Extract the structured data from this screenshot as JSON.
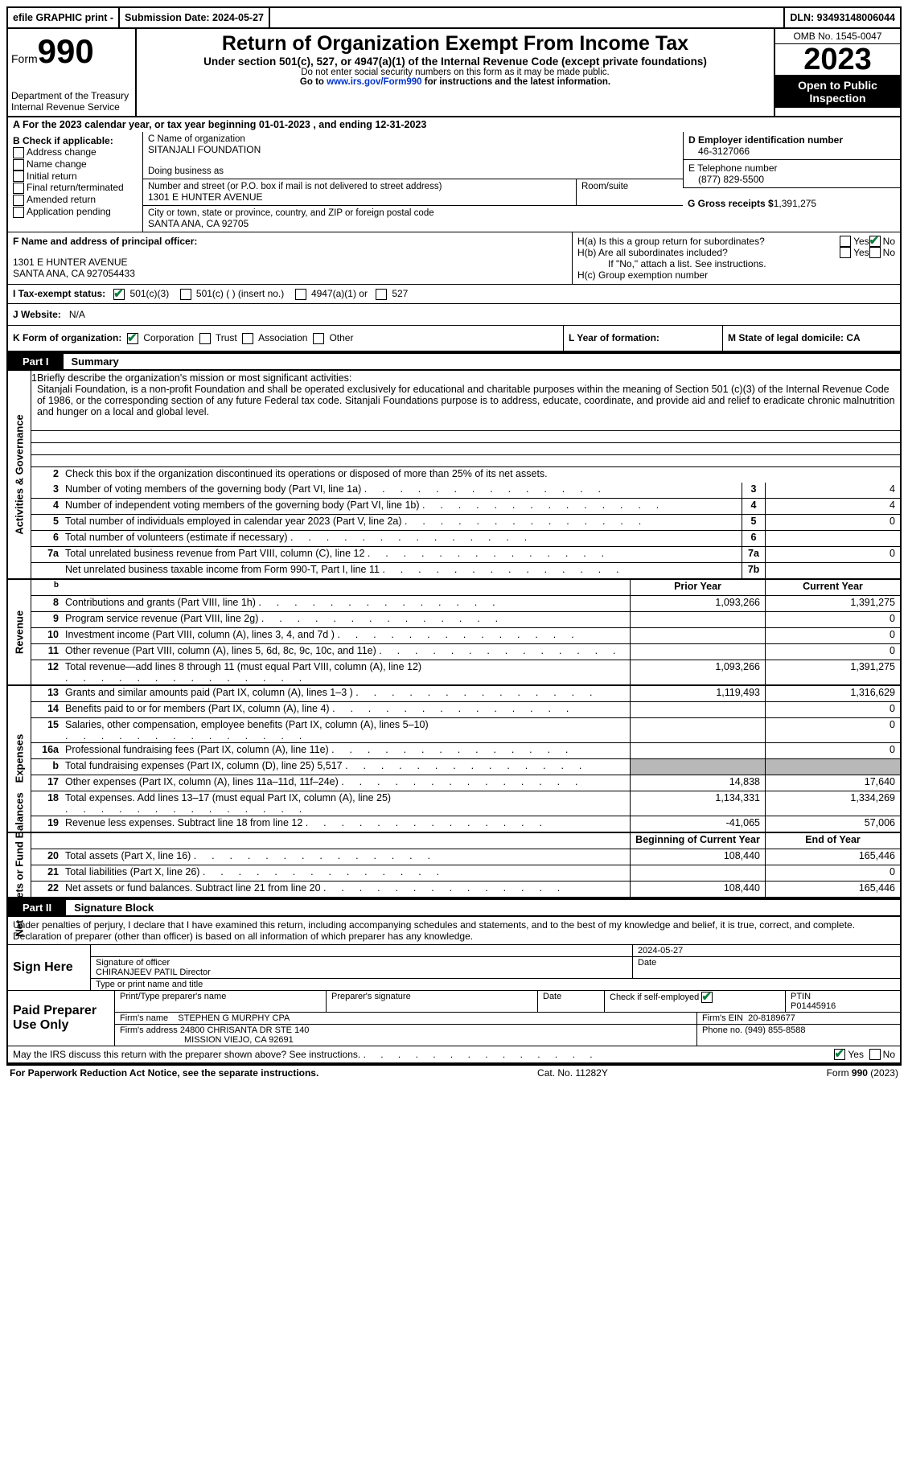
{
  "topbar": {
    "efile": "efile GRAPHIC print -",
    "sub_label": "Submission Date: 2024-05-27",
    "dln": "DLN: 93493148006044"
  },
  "header": {
    "form_word": "Form",
    "form_num": "990",
    "dept": "Department of the Treasury Internal Revenue Service",
    "title": "Return of Organization Exempt From Income Tax",
    "subtitle": "Under section 501(c), 527, or 4947(a)(1) of the Internal Revenue Code (except private foundations)",
    "ssn_note": "Do not enter social security numbers on this form as it may be made public.",
    "goto_pre": "Go to ",
    "goto_link": "www.irs.gov/Form990",
    "goto_post": " for instructions and the latest information.",
    "omb": "OMB No. 1545-0047",
    "year": "2023",
    "inspection": "Open to Public Inspection"
  },
  "rowA": "A  For the 2023 calendar year, or tax year beginning 01-01-2023    , and ending 12-31-2023",
  "colB": {
    "title": "B Check if applicable:",
    "items": [
      "Address change",
      "Name change",
      "Initial return",
      "Final return/terminated",
      "Amended return",
      "Application pending"
    ]
  },
  "colC": {
    "name_label": "C Name of organization",
    "name": "SITANJALI FOUNDATION",
    "dba_label": "Doing business as",
    "street_label": "Number and street (or P.O. box if mail is not delivered to street address)",
    "room_label": "Room/suite",
    "street": "1301 E HUNTER AVENUE",
    "city_label": "City or town, state or province, country, and ZIP or foreign postal code",
    "city": "SANTA ANA, CA  92705"
  },
  "colD": {
    "ein_label": "D Employer identification number",
    "ein": "46-3127066",
    "phone_label": "E Telephone number",
    "phone": "(877) 829-5500",
    "gross_label": "G Gross receipts $",
    "gross": "1,391,275"
  },
  "rowF": {
    "label": "F  Name and address of principal officer:",
    "addr1": "1301 E HUNTER AVENUE",
    "addr2": "SANTA ANA, CA  927054433"
  },
  "rowH": {
    "a": "H(a)  Is this a group return for subordinates?",
    "b": "H(b)  Are all subordinates included?",
    "b_note": "If \"No,\" attach a list. See instructions.",
    "c": "H(c)  Group exemption number"
  },
  "rowI": {
    "label": "I    Tax-exempt status:",
    "opts": [
      "501(c)(3)",
      "501(c) (  ) (insert no.)",
      "4947(a)(1) or",
      "527"
    ]
  },
  "rowJ": {
    "label": "J    Website:",
    "val": "N/A"
  },
  "rowK": {
    "label": "K Form of organization:",
    "opts": [
      "Corporation",
      "Trust",
      "Association",
      "Other"
    ]
  },
  "rowL": "L Year of formation:",
  "rowM": "M State of legal domicile: CA",
  "part1": {
    "tab": "Part I",
    "label": "Summary"
  },
  "governance": {
    "title": "Activities & Governance",
    "line1_label": "Briefly describe the organization's mission or most significant activities:",
    "mission": "Sitanjali Foundation, is a non-profit Foundation and shall be operated exclusively for educational and charitable purposes within the meaning of Section 501 (c)(3) of the Internal Revenue Code of 1986, or the corresponding section of any future Federal tax code. Sitanjali Foundations purpose is to address, educate, coordinate, and provide aid and relief to eradicate chronic malnutrition and hunger on a local and global level.",
    "line2": "Check this box        if the organization discontinued its operations or disposed of more than 25% of its net assets.",
    "lines": [
      {
        "n": "3",
        "desc": "Number of voting members of the governing body (Part VI, line 1a)",
        "box": "3",
        "val": "4"
      },
      {
        "n": "4",
        "desc": "Number of independent voting members of the governing body (Part VI, line 1b)",
        "box": "4",
        "val": "4"
      },
      {
        "n": "5",
        "desc": "Total number of individuals employed in calendar year 2023 (Part V, line 2a)",
        "box": "5",
        "val": "0"
      },
      {
        "n": "6",
        "desc": "Total number of volunteers (estimate if necessary)",
        "box": "6",
        "val": ""
      },
      {
        "n": "7a",
        "desc": "Total unrelated business revenue from Part VIII, column (C), line 12",
        "box": "7a",
        "val": "0"
      },
      {
        "n": "",
        "desc": "Net unrelated business taxable income from Form 990-T, Part I, line 11",
        "box": "7b",
        "val": ""
      }
    ]
  },
  "revenue": {
    "title": "Revenue",
    "head_prior": "Prior Year",
    "head_curr": "Current Year",
    "lines": [
      {
        "n": "8",
        "desc": "Contributions and grants (Part VIII, line 1h)",
        "prior": "1,093,266",
        "curr": "1,391,275"
      },
      {
        "n": "9",
        "desc": "Program service revenue (Part VIII, line 2g)",
        "prior": "",
        "curr": "0"
      },
      {
        "n": "10",
        "desc": "Investment income (Part VIII, column (A), lines 3, 4, and 7d )",
        "prior": "",
        "curr": "0"
      },
      {
        "n": "11",
        "desc": "Other revenue (Part VIII, column (A), lines 5, 6d, 8c, 9c, 10c, and 11e)",
        "prior": "",
        "curr": "0"
      },
      {
        "n": "12",
        "desc": "Total revenue—add lines 8 through 11 (must equal Part VIII, column (A), line 12)",
        "prior": "1,093,266",
        "curr": "1,391,275"
      }
    ]
  },
  "expenses": {
    "title": "Expenses",
    "lines": [
      {
        "n": "13",
        "desc": "Grants and similar amounts paid (Part IX, column (A), lines 1–3 )",
        "prior": "1,119,493",
        "curr": "1,316,629"
      },
      {
        "n": "14",
        "desc": "Benefits paid to or for members (Part IX, column (A), line 4)",
        "prior": "",
        "curr": "0"
      },
      {
        "n": "15",
        "desc": "Salaries, other compensation, employee benefits (Part IX, column (A), lines 5–10)",
        "prior": "",
        "curr": "0"
      },
      {
        "n": "16a",
        "desc": "Professional fundraising fees (Part IX, column (A), line 11e)",
        "prior": "",
        "curr": "0"
      },
      {
        "n": "b",
        "desc": "Total fundraising expenses (Part IX, column (D), line 25) 5,517",
        "prior": "grey",
        "curr": "grey"
      },
      {
        "n": "17",
        "desc": "Other expenses (Part IX, column (A), lines 11a–11d, 11f–24e)",
        "prior": "14,838",
        "curr": "17,640"
      },
      {
        "n": "18",
        "desc": "Total expenses. Add lines 13–17 (must equal Part IX, column (A), line 25)",
        "prior": "1,134,331",
        "curr": "1,334,269"
      },
      {
        "n": "19",
        "desc": "Revenue less expenses. Subtract line 18 from line 12",
        "prior": "-41,065",
        "curr": "57,006"
      }
    ]
  },
  "netassets": {
    "title": "Net Assets or Fund Balances",
    "head_prior": "Beginning of Current Year",
    "head_curr": "End of Year",
    "lines": [
      {
        "n": "20",
        "desc": "Total assets (Part X, line 16)",
        "prior": "108,440",
        "curr": "165,446"
      },
      {
        "n": "21",
        "desc": "Total liabilities (Part X, line 26)",
        "prior": "",
        "curr": "0"
      },
      {
        "n": "22",
        "desc": "Net assets or fund balances. Subtract line 21 from line 20",
        "prior": "108,440",
        "curr": "165,446"
      }
    ]
  },
  "part2": {
    "tab": "Part II",
    "label": "Signature Block"
  },
  "sig": {
    "text": "Under penalties of perjury, I declare that I have examined this return, including accompanying schedules and statements, and to the best of my knowledge and belief, it is true, correct, and complete. Declaration of preparer (other than officer) is based on all information of which preparer has any knowledge.",
    "sign_here": "Sign Here",
    "date": "2024-05-27",
    "sig_officer": "Signature of officer",
    "officer": "CHIRANJEEV PATIL  Director",
    "type_label": "Type or print name and title",
    "date_label": "Date",
    "paid": "Paid Preparer Use Only",
    "prep_name_label": "Print/Type preparer's name",
    "prep_sig_label": "Preparer's signature",
    "check_label": "Check         if self-employed",
    "ptin_label": "PTIN",
    "ptin": "P01445916",
    "firm_name_label": "Firm's name",
    "firm_name": "STEPHEN G MURPHY CPA",
    "firm_ein_label": "Firm's EIN",
    "firm_ein": "20-8189677",
    "firm_addr_label": "Firm's address",
    "firm_addr1": "24800 CHRISANTA DR STE 140",
    "firm_addr2": "MISSION VIEJO, CA  92691",
    "firm_phone_label": "Phone no.",
    "firm_phone": "(949) 855-8588",
    "discuss": "May the IRS discuss this return with the preparer shown above? See instructions."
  },
  "footer": {
    "left": "For Paperwork Reduction Act Notice, see the separate instructions.",
    "mid": "Cat. No. 11282Y",
    "right": "Form 990 (2023)"
  }
}
